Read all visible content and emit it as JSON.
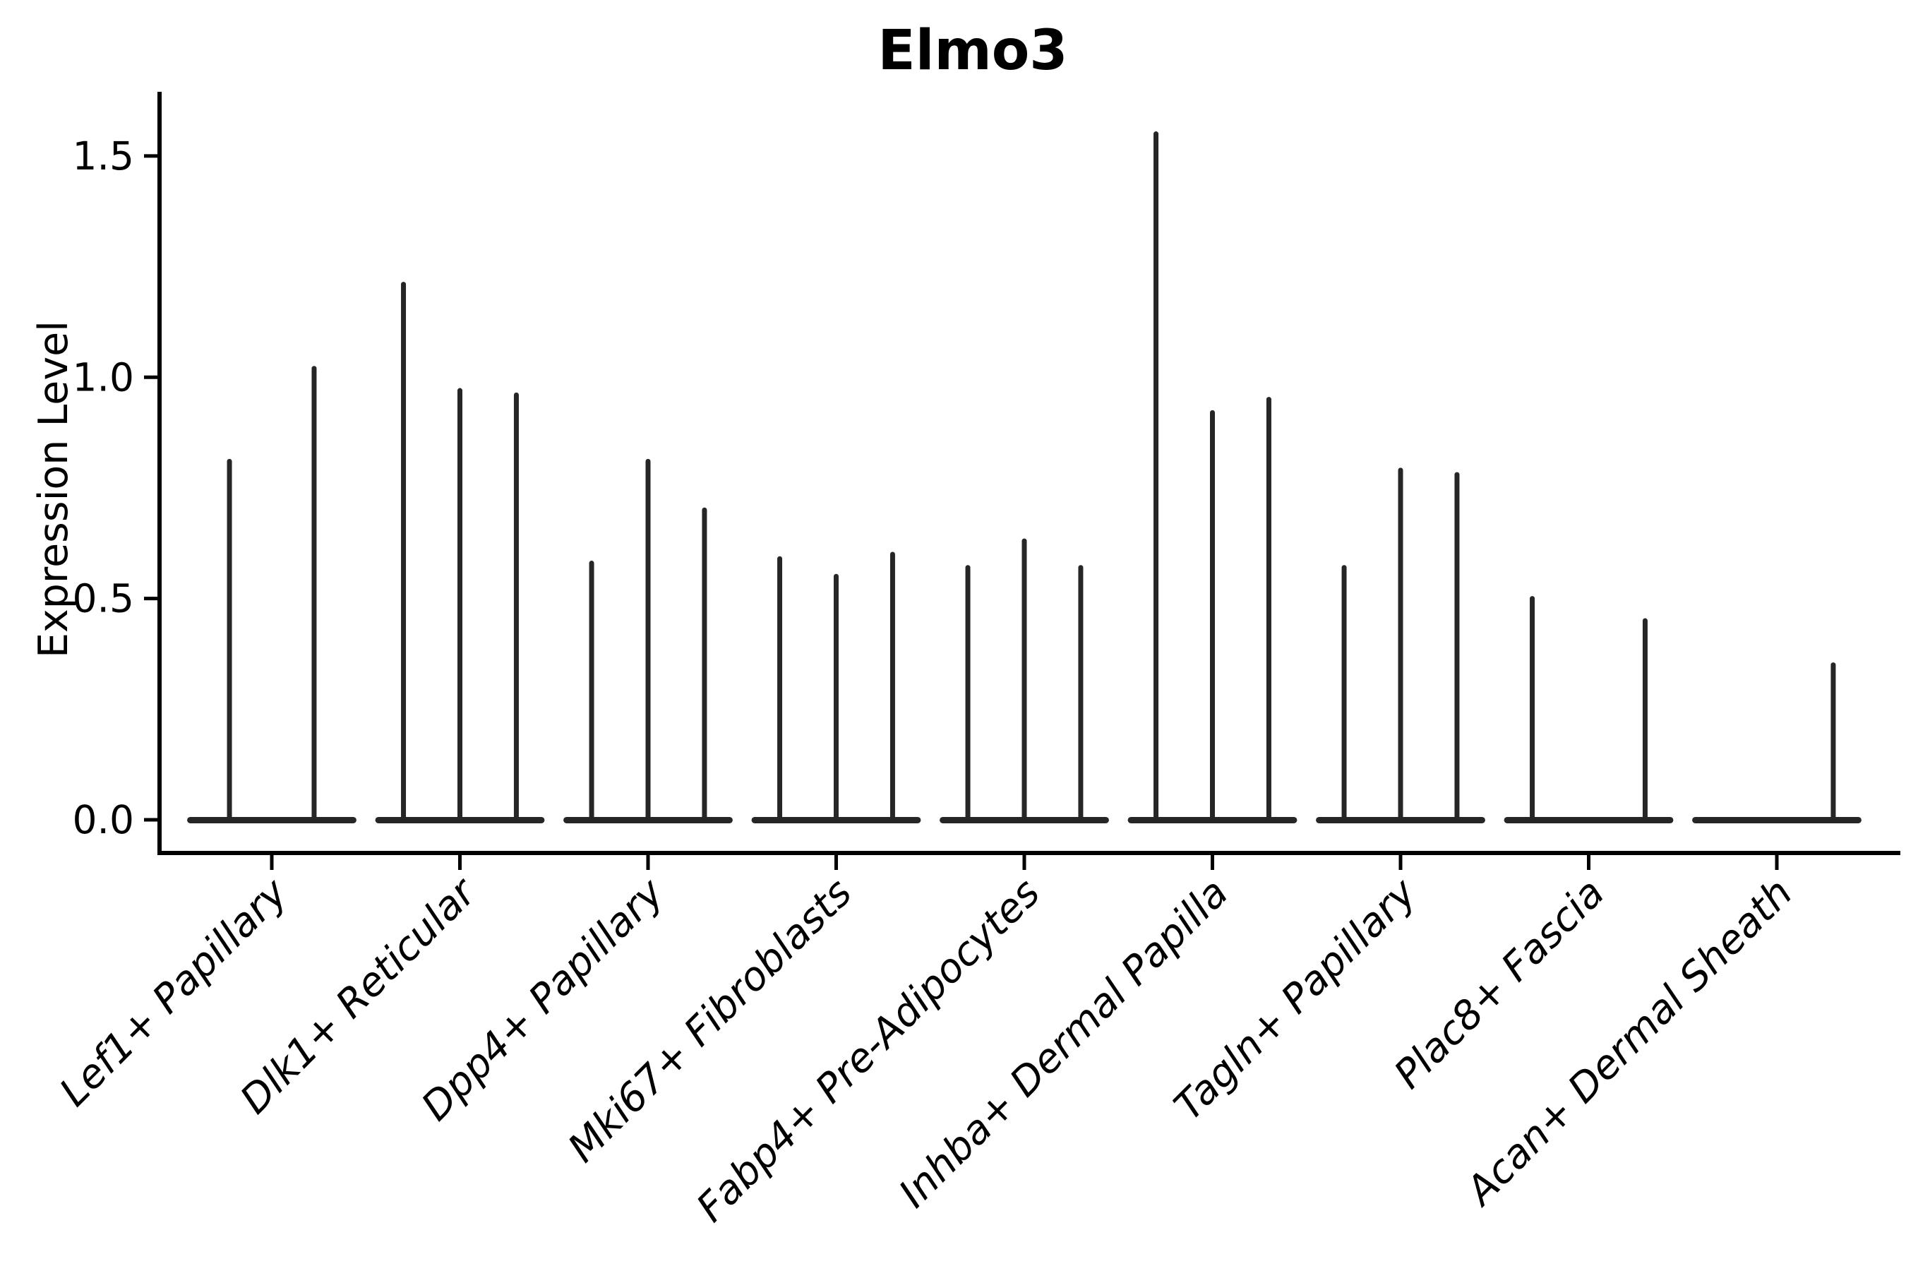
{
  "chart_data": {
    "type": "violin",
    "title": "Elmo3",
    "ylabel": "Expression Level",
    "xlabel": "",
    "yticks": [
      0.0,
      0.5,
      1.0,
      1.5
    ],
    "ylim": [
      -0.075,
      1.645
    ],
    "grid": false,
    "legend": "none",
    "spines": [
      "left",
      "bottom"
    ],
    "line_color": "#262626",
    "text_color": "#000000",
    "background_color": "#ffffff",
    "categories": [
      "Lef1+ Papillary",
      "Dlk1+ Reticular",
      "Dpp4+ Papillary",
      "Mki67+ Fibroblasts",
      "Fabp4+ Pre-Adipocytes",
      "Inhba+ Dermal Papilla",
      "Tagln+ Papillary",
      "Plac8+ Fascia",
      "Acan+ Dermal Sheath"
    ],
    "violin_maxima": [
      [
        0.81,
        1.02
      ],
      [
        1.21,
        0.97,
        0.96
      ],
      [
        0.58,
        0.81,
        0.7
      ],
      [
        0.59,
        0.55,
        0.6
      ],
      [
        0.57,
        0.63,
        0.57
      ],
      [
        1.55,
        0.92,
        0.95
      ],
      [
        0.57,
        0.79,
        0.78
      ],
      [
        0.5,
        0.0,
        0.45
      ],
      [
        0.0,
        0.0,
        0.35
      ]
    ],
    "note": "Each category shows narrow split violins collapsed at 0 expression; values are the maximum expression reached by each thin violin spike."
  }
}
